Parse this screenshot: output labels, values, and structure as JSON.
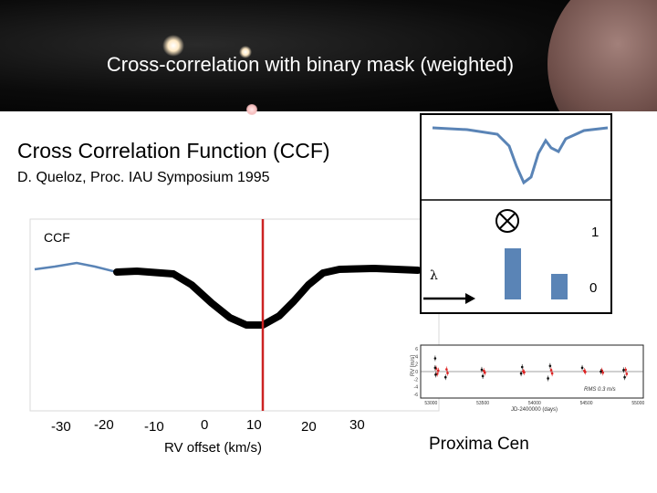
{
  "banner": {
    "title": "Cross-correlation with binary mask (weighted)"
  },
  "slide": {
    "title": "Cross Correlation Function (CCF)",
    "reference": "D. Queloz, Proc. IAU Symposium 1995"
  },
  "ccf_plot": {
    "label": "CCF",
    "x_ticks": [
      "-30",
      "-20",
      "-10",
      "0",
      "10",
      "20",
      "30"
    ],
    "xlabel": "RV offset (km/s)",
    "line_color": "#5a84b6",
    "model_color": "#000000",
    "marker_color": "#cc2222"
  },
  "mask_panel": {
    "symbol": "⊗",
    "level_high": "1",
    "level_low": "0",
    "lambda": "λ",
    "line_color": "#5a84b6"
  },
  "rv_panel": {
    "y_ticks": [
      "6",
      "4",
      "2",
      "0",
      "-2",
      "-4",
      "-6"
    ],
    "x_ticks": [
      "53000",
      "53500",
      "54000",
      "54500",
      "55000"
    ],
    "ylabel": "RV [m/s]",
    "xlabel": "JD-2400000 (days)",
    "rms": "RMS 0.3 m/s",
    "caption": "Proxima Cen",
    "black_points": [
      [
        53040,
        3.5
      ],
      [
        53040,
        1.0
      ],
      [
        53045,
        -0.8
      ],
      [
        53140,
        -1.5
      ],
      [
        53490,
        0.5
      ],
      [
        53500,
        -1.2
      ],
      [
        53870,
        -0.5
      ],
      [
        53880,
        1.2
      ],
      [
        54130,
        -1.8
      ],
      [
        54150,
        1.5
      ],
      [
        54460,
        1.0
      ],
      [
        54640,
        0.0
      ],
      [
        54860,
        0.4
      ],
      [
        54870,
        -1.5
      ]
    ],
    "red_points": [
      [
        53050,
        0.8
      ],
      [
        53060,
        -0.6
      ],
      [
        53070,
        0.3
      ],
      [
        53150,
        0.6
      ],
      [
        53160,
        -0.4
      ],
      [
        53510,
        0.2
      ],
      [
        53520,
        -0.3
      ],
      [
        53890,
        0.1
      ],
      [
        53900,
        -0.2
      ],
      [
        54160,
        0.4
      ],
      [
        54170,
        -0.5
      ],
      [
        54480,
        0.2
      ],
      [
        54490,
        -0.1
      ],
      [
        54650,
        0.3
      ],
      [
        54660,
        -0.3
      ],
      [
        54880,
        0.5
      ],
      [
        54890,
        -0.6
      ]
    ]
  }
}
